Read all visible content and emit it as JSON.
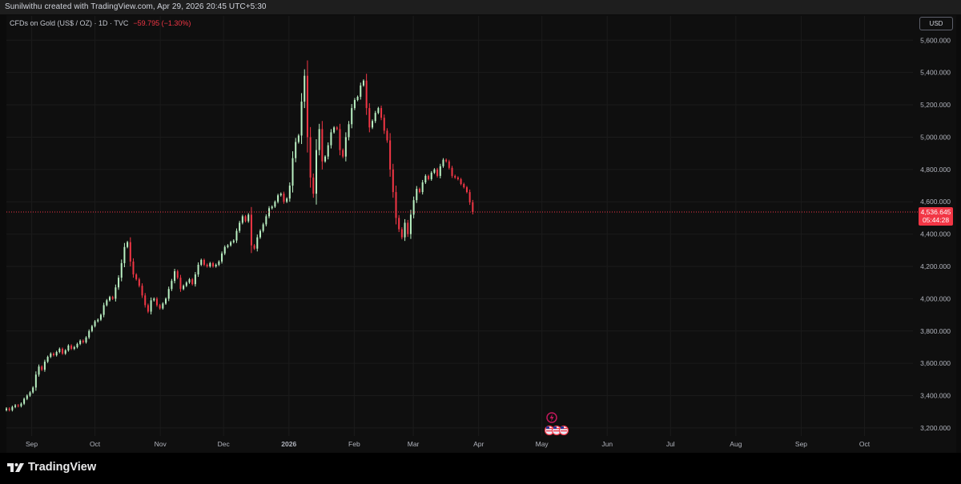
{
  "header": {
    "attribution": "Sunilwithu created with TradingView.com, Apr 29, 2026 20:45 UTC+5:30"
  },
  "legend": {
    "symbol": "CFDs on Gold (US$ / OZ) · 1D · TVC",
    "change": "−59.795 (−1.30%)"
  },
  "currency_button": "USD",
  "price_label": {
    "price": "4,536.645",
    "countdown": "05:44:28"
  },
  "brand": {
    "name": "TradingView"
  },
  "colors": {
    "up": "#b9f0c2",
    "down": "#f23645",
    "background": "#0f0f0f",
    "grid": "#1b1b1b",
    "axis_text": "#b2b5be",
    "event_marker": "#c2185b"
  },
  "event_markers": [
    "lightning-icon",
    "us-flag-icon"
  ],
  "chart_data": {
    "type": "candlestick",
    "title": "CFDs on Gold (US$ / OZ)",
    "interval": "1D",
    "source": "TVC",
    "ylim": [
      3150000,
      5750000
    ],
    "y_ticks": [
      3200000,
      3400000,
      3600000,
      3800000,
      4000000,
      4200000,
      4400000,
      4600000,
      4800000,
      5000000,
      5200000,
      5400000,
      5600000
    ],
    "y_tick_labels": [
      "3,200.000",
      "3,400.000",
      "3,600.000",
      "3,800.000",
      "4,000.000",
      "4,200.000",
      "4,400.000",
      "4,600.000",
      "4,800.000",
      "5,000.000",
      "5,200.000",
      "5,400.000",
      "5,600.000"
    ],
    "x_range": [
      "2025-08-20",
      "2026-10-24"
    ],
    "x_ticks": [
      {
        "date": "2025-09-01",
        "label": "Sep",
        "bold": false
      },
      {
        "date": "2025-10-01",
        "label": "Oct",
        "bold": false
      },
      {
        "date": "2025-11-01",
        "label": "Nov",
        "bold": false
      },
      {
        "date": "2025-12-01",
        "label": "Dec",
        "bold": false
      },
      {
        "date": "2026-01-01",
        "label": "2026",
        "bold": true
      },
      {
        "date": "2026-02-01",
        "label": "Feb",
        "bold": false
      },
      {
        "date": "2026-03-01",
        "label": "Mar",
        "bold": false
      },
      {
        "date": "2026-04-01",
        "label": "Apr",
        "bold": false
      },
      {
        "date": "2026-05-01",
        "label": "May",
        "bold": false
      },
      {
        "date": "2026-06-01",
        "label": "Jun",
        "bold": false
      },
      {
        "date": "2026-07-01",
        "label": "Jul",
        "bold": false
      },
      {
        "date": "2026-08-01",
        "label": "Aug",
        "bold": false
      },
      {
        "date": "2026-09-01",
        "label": "Sep",
        "bold": false
      },
      {
        "date": "2026-10-01",
        "label": "Oct",
        "bold": false
      }
    ],
    "last_price": 4536645,
    "series": [
      {
        "start": "2025-08-20",
        "closes": [
          3320000,
          3310000,
          3330000,
          3340000,
          3335000,
          3350000,
          3380000,
          3400000,
          3420000,
          3450000,
          3530000,
          3580000,
          3560000,
          3610000,
          3640000,
          3660000,
          3650000,
          3670000,
          3690000,
          3660000,
          3680000,
          3710000,
          3690000,
          3700000,
          3720000,
          3740000,
          3730000,
          3760000,
          3800000,
          3830000,
          3860000,
          3870000,
          3900000,
          3960000,
          3990000,
          4010000,
          4000000,
          4070000,
          4130000,
          4220000,
          4320000,
          4350000,
          4230000,
          4150000,
          4120000,
          4080000,
          4020000,
          3960000,
          3920000,
          3990000,
          4000000,
          3960000,
          3940000,
          3970000,
          4000000,
          4060000,
          4110000,
          4170000,
          4130000,
          4060000,
          4080000,
          4100000,
          4120000,
          4090000,
          4150000,
          4210000,
          4240000,
          4210000,
          4200000,
          4220000,
          4200000,
          4210000,
          4230000,
          4280000,
          4320000,
          4330000,
          4350000,
          4360000,
          4420000,
          4470000,
          4510000,
          4480000,
          4520000,
          4330000,
          4310000,
          4380000,
          4420000,
          4460000,
          4510000,
          4560000,
          4570000,
          4600000,
          4640000,
          4650000,
          4600000,
          4620000,
          4700000,
          4870000,
          4970000,
          5010000,
          5220000,
          5380000,
          5000000,
          4750000,
          4650000,
          4920000,
          5050000,
          4850000,
          4880000,
          4950000,
          5030000,
          5060000,
          5050000,
          4920000,
          4880000,
          5000000,
          5080000,
          5180000,
          5230000,
          5250000,
          5320000,
          5350000,
          5180000,
          5060000,
          5100000,
          5150000,
          5180000,
          5120000,
          5040000,
          4980000,
          4800000,
          4660000,
          4500000,
          4430000,
          4380000,
          4470000,
          4400000,
          4520000,
          4610000,
          4680000,
          4660000,
          4720000,
          4760000,
          4740000,
          4780000,
          4800000,
          4760000,
          4820000,
          4860000,
          4850000,
          4810000,
          4760000,
          4750000,
          4740000,
          4710000,
          4690000,
          4660000,
          4596440,
          4536645
        ]
      }
    ],
    "events": [
      {
        "date": "2026-04-28",
        "icon": "lightning-icon"
      },
      {
        "date": "2026-04-28",
        "icon": "us-flag-icon"
      }
    ]
  }
}
